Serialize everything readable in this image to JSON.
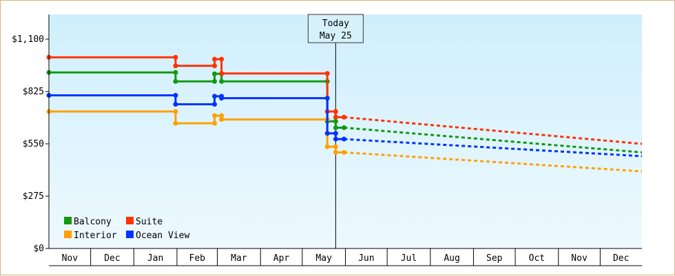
{
  "chart_data": {
    "type": "line",
    "step": true,
    "y_tick_labels": [
      "$0",
      "$275",
      "$550",
      "$825",
      "$1,100"
    ],
    "ylim": [
      0,
      1230
    ],
    "x_months": [
      "Nov",
      "Dec",
      "Jan",
      "Feb",
      "Mar",
      "Apr",
      "May",
      "Jun",
      "Jul",
      "Aug",
      "Sep",
      "Oct",
      "Nov",
      "Dec"
    ],
    "xlim": [
      "2023-11-01",
      "2024-12-31"
    ],
    "today_marker": {
      "line1": "Today",
      "line2": "May 25",
      "date": "2024-05-25"
    },
    "legend": {
      "placement": "bottom-left"
    },
    "series": [
      {
        "name": "Balcony",
        "color": "#119911",
        "history": [
          [
            "2023-11-01",
            925
          ],
          [
            "2024-01-31",
            925
          ],
          [
            "2024-01-31",
            878
          ],
          [
            "2024-02-28",
            878
          ],
          [
            "2024-02-28",
            918
          ],
          [
            "2024-03-04",
            918
          ],
          [
            "2024-03-04",
            878
          ],
          [
            "2024-05-19",
            878
          ],
          [
            "2024-05-19",
            668
          ],
          [
            "2024-05-25",
            668
          ],
          [
            "2024-05-25",
            635
          ],
          [
            "2024-05-31",
            635
          ]
        ],
        "forecast": [
          [
            "2024-05-31",
            635
          ],
          [
            "2024-12-31",
            505
          ]
        ]
      },
      {
        "name": "Suite",
        "color": "#ff3300",
        "history": [
          [
            "2023-11-01",
            1005
          ],
          [
            "2024-01-31",
            1005
          ],
          [
            "2024-01-31",
            960
          ],
          [
            "2024-02-28",
            960
          ],
          [
            "2024-02-28",
            995
          ],
          [
            "2024-03-04",
            995
          ],
          [
            "2024-03-04",
            920
          ],
          [
            "2024-05-19",
            920
          ],
          [
            "2024-05-19",
            720
          ],
          [
            "2024-05-25",
            720
          ],
          [
            "2024-05-25",
            690
          ],
          [
            "2024-05-31",
            690
          ]
        ],
        "forecast": [
          [
            "2024-05-31",
            690
          ],
          [
            "2024-12-31",
            550
          ]
        ]
      },
      {
        "name": "Interior",
        "color": "#ffa000",
        "history": [
          [
            "2023-11-01",
            720
          ],
          [
            "2024-01-31",
            720
          ],
          [
            "2024-01-31",
            658
          ],
          [
            "2024-02-28",
            658
          ],
          [
            "2024-02-28",
            698
          ],
          [
            "2024-03-04",
            698
          ],
          [
            "2024-03-04",
            678
          ],
          [
            "2024-05-19",
            678
          ],
          [
            "2024-05-19",
            535
          ],
          [
            "2024-05-25",
            535
          ],
          [
            "2024-05-25",
            505
          ],
          [
            "2024-05-31",
            505
          ]
        ],
        "forecast": [
          [
            "2024-05-31",
            505
          ],
          [
            "2024-12-31",
            405
          ]
        ]
      },
      {
        "name": "Ocean View",
        "color": "#0033ff",
        "history": [
          [
            "2023-11-01",
            805
          ],
          [
            "2024-01-31",
            805
          ],
          [
            "2024-01-31",
            758
          ],
          [
            "2024-02-28",
            758
          ],
          [
            "2024-02-28",
            800
          ],
          [
            "2024-03-04",
            800
          ],
          [
            "2024-03-04",
            790
          ],
          [
            "2024-05-19",
            790
          ],
          [
            "2024-05-19",
            605
          ],
          [
            "2024-05-25",
            605
          ],
          [
            "2024-05-25",
            575
          ],
          [
            "2024-05-31",
            575
          ]
        ],
        "forecast": [
          [
            "2024-05-31",
            575
          ],
          [
            "2024-12-31",
            485
          ]
        ]
      }
    ]
  }
}
